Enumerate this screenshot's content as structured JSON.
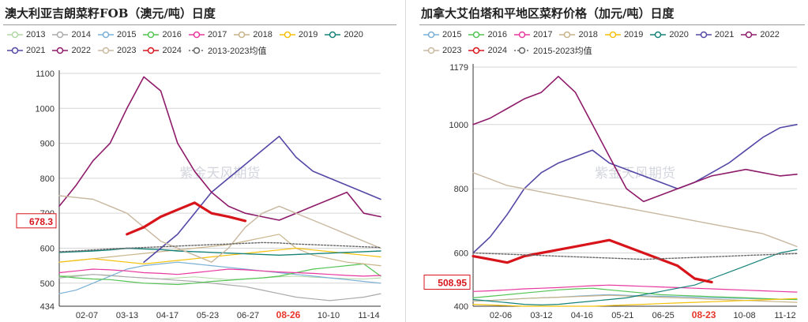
{
  "chart_data": [
    {
      "id": "left",
      "type": "line",
      "title": "澳大利亚吉朗菜籽FOB（澳元/吨）日度",
      "ylim": [
        434,
        1100
      ],
      "yticks": [
        434,
        500,
        600,
        700,
        800,
        900,
        1000,
        1100
      ],
      "x_ticks": [
        "02-07",
        "03-13",
        "04-17",
        "05-23",
        "06-27",
        "08-26",
        "10-10",
        "11-14"
      ],
      "highlight_x": "08-26",
      "latest_value": "678.3",
      "watermark": "紫金天风期货",
      "legend_rows": [
        [
          "2013",
          "2014",
          "2015",
          "2016",
          "2017",
          "2018",
          "2019",
          "2020"
        ],
        [
          "2021",
          "2022",
          "2023",
          "2024",
          "2013-2023均值"
        ]
      ],
      "series": [
        {
          "name": "2013",
          "color": "#b2d8a6",
          "width": 1,
          "values": [
            520,
            522,
            525,
            521,
            518,
            515,
            512,
            515,
            518,
            514,
            510,
            512,
            515,
            518,
            520,
            517,
            515,
            513,
            512,
            515
          ]
        },
        {
          "name": "2014",
          "color": "#aaaaaa",
          "width": 1.2,
          "values": [
            515,
            520,
            525,
            522,
            518,
            515,
            512,
            508,
            505,
            500,
            495,
            490,
            480,
            470,
            460,
            455,
            450,
            455,
            460,
            470
          ]
        },
        {
          "name": "2015",
          "color": "#7ab0d6",
          "width": 1.2,
          "values": [
            470,
            480,
            500,
            520,
            540,
            550,
            555,
            560,
            555,
            550,
            545,
            540,
            535,
            530,
            525,
            520,
            515,
            510,
            505,
            500
          ]
        },
        {
          "name": "2016",
          "color": "#54c454",
          "width": 1.2,
          "values": [
            520,
            515,
            512,
            510,
            505,
            500,
            498,
            496,
            500,
            505,
            508,
            512,
            515,
            520,
            530,
            540,
            545,
            550,
            555,
            520
          ]
        },
        {
          "name": "2017",
          "color": "#e8389e",
          "width": 1.2,
          "values": [
            530,
            535,
            540,
            538,
            535,
            530,
            528,
            525,
            530,
            535,
            540,
            538,
            535,
            532,
            530,
            528,
            525,
            522,
            520,
            522
          ]
        },
        {
          "name": "2018",
          "color": "#c9b48a",
          "width": 1.2,
          "values": [
            560,
            565,
            570,
            575,
            580,
            585,
            590,
            595,
            600,
            605,
            610,
            620,
            630,
            640,
            600,
            580,
            570,
            560,
            555,
            550
          ]
        },
        {
          "name": "2019",
          "color": "#f5c10a",
          "width": 1.2,
          "values": [
            560,
            565,
            570,
            565,
            560,
            555,
            560,
            565,
            570,
            575,
            580,
            585,
            590,
            595,
            600,
            595,
            590,
            585,
            580,
            575
          ]
        },
        {
          "name": "2020",
          "color": "#15837a",
          "width": 1.4,
          "values": [
            588,
            590,
            592,
            595,
            600,
            598,
            596,
            592,
            590,
            588,
            586,
            584,
            582,
            580,
            582,
            584,
            586,
            588,
            590,
            592
          ]
        },
        {
          "name": "2021",
          "color": "#5448a6",
          "width": 1.6,
          "values": [
            null,
            null,
            null,
            null,
            null,
            560,
            600,
            640,
            700,
            760,
            800,
            840,
            880,
            920,
            860,
            820,
            800,
            780,
            760,
            740
          ]
        },
        {
          "name": "2022",
          "color": "#8e1b6a",
          "width": 1.6,
          "values": [
            720,
            780,
            850,
            900,
            1000,
            1090,
            1050,
            900,
            820,
            760,
            720,
            700,
            690,
            680,
            700,
            720,
            740,
            760,
            700,
            690
          ]
        },
        {
          "name": "2023",
          "color": "#c9b8a0",
          "width": 1.4,
          "values": [
            750,
            745,
            740,
            720,
            700,
            660,
            620,
            600,
            580,
            560,
            600,
            660,
            700,
            720,
            700,
            680,
            660,
            640,
            620,
            600
          ]
        },
        {
          "name": "2024",
          "color": "#d8141b",
          "width": 3.2,
          "values": [
            null,
            null,
            null,
            null,
            640,
            660,
            690,
            710,
            730,
            700,
            690,
            678,
            null,
            null,
            null,
            null,
            null,
            null,
            null,
            null
          ]
        },
        {
          "name": "2013-2023均值",
          "color": "#666666",
          "width": 1.4,
          "dash": "2,2",
          "values": [
            590,
            592,
            595,
            598,
            600,
            602,
            604,
            606,
            608,
            610,
            612,
            614,
            616,
            615,
            612,
            610,
            608,
            606,
            604,
            602
          ]
        }
      ]
    },
    {
      "id": "right",
      "type": "line",
      "title": "加拿大艾伯塔和平地区菜籽价格（加元/吨）日度",
      "ylim": [
        434,
        1179
      ],
      "yticks": [
        400,
        600,
        800,
        1000,
        1179
      ],
      "x_ticks": [
        "02-06",
        "03-12",
        "04-16",
        "05-21",
        "06-25",
        "08-23",
        "10-08",
        "11-12"
      ],
      "highlight_x": "08-23",
      "latest_value": "508.95",
      "watermark": "紫金天风期货",
      "legend_rows": [
        [
          "2015",
          "2016",
          "2017",
          "2018",
          "2019",
          "2020",
          "2021",
          "2022"
        ],
        [
          "2023",
          "2024",
          "2015-2023均值"
        ]
      ],
      "series": [
        {
          "name": "2015",
          "color": "#7ab0d6",
          "width": 1.2,
          "values": [
            450,
            452,
            455,
            458,
            460,
            462,
            465,
            468,
            470,
            468,
            466,
            465,
            464,
            462,
            460,
            459,
            458,
            457,
            456,
            455
          ]
        },
        {
          "name": "2016",
          "color": "#54c454",
          "width": 1.2,
          "values": [
            460,
            465,
            470,
            475,
            480,
            485,
            488,
            490,
            485,
            480,
            475,
            470,
            468,
            466,
            464,
            462,
            460,
            458,
            456,
            455
          ]
        },
        {
          "name": "2017",
          "color": "#e8389e",
          "width": 1.2,
          "values": [
            480,
            482,
            485,
            488,
            490,
            492,
            495,
            498,
            500,
            498,
            496,
            494,
            492,
            490,
            488,
            486,
            484,
            482,
            480,
            478
          ]
        },
        {
          "name": "2018",
          "color": "#c9b48a",
          "width": 1.2,
          "values": [
            450,
            452,
            455,
            458,
            460,
            462,
            464,
            466,
            468,
            466,
            464,
            462,
            460,
            458,
            456,
            454,
            452,
            450,
            448,
            446
          ]
        },
        {
          "name": "2019",
          "color": "#f5c10a",
          "width": 1.2,
          "values": [
            440,
            438,
            436,
            434,
            432,
            430,
            432,
            434,
            436,
            438,
            440,
            442,
            444,
            446,
            448,
            450,
            452,
            454,
            456,
            458
          ]
        },
        {
          "name": "2020",
          "color": "#15837a",
          "width": 1.2,
          "values": [
            455,
            450,
            445,
            440,
            438,
            440,
            445,
            450,
            455,
            460,
            470,
            480,
            490,
            500,
            520,
            540,
            560,
            580,
            600,
            610
          ]
        },
        {
          "name": "2021",
          "color": "#5448a6",
          "width": 1.6,
          "values": [
            600,
            650,
            720,
            800,
            850,
            880,
            900,
            920,
            880,
            860,
            840,
            820,
            800,
            820,
            850,
            880,
            920,
            960,
            990,
            1000
          ]
        },
        {
          "name": "2022",
          "color": "#8e1b6a",
          "width": 1.6,
          "values": [
            1000,
            1020,
            1050,
            1080,
            1100,
            1150,
            1100,
            1000,
            900,
            800,
            760,
            780,
            800,
            820,
            840,
            850,
            860,
            850,
            840,
            845
          ]
        },
        {
          "name": "2023",
          "color": "#c9b8a0",
          "width": 1.4,
          "values": [
            850,
            830,
            810,
            800,
            790,
            780,
            770,
            760,
            750,
            740,
            730,
            720,
            710,
            700,
            690,
            680,
            670,
            660,
            640,
            620
          ]
        },
        {
          "name": "2024",
          "color": "#d8141b",
          "width": 3.2,
          "values": [
            590,
            580,
            570,
            590,
            600,
            610,
            620,
            630,
            640,
            620,
            600,
            580,
            560,
            520,
            509,
            null,
            null,
            null,
            null,
            null
          ]
        },
        {
          "name": "2015-2023均值",
          "color": "#666666",
          "width": 1.4,
          "dash": "2,2",
          "values": [
            600,
            598,
            596,
            594,
            592,
            590,
            588,
            586,
            584,
            582,
            580,
            582,
            584,
            586,
            588,
            590,
            592,
            594,
            596,
            598
          ]
        }
      ]
    }
  ]
}
